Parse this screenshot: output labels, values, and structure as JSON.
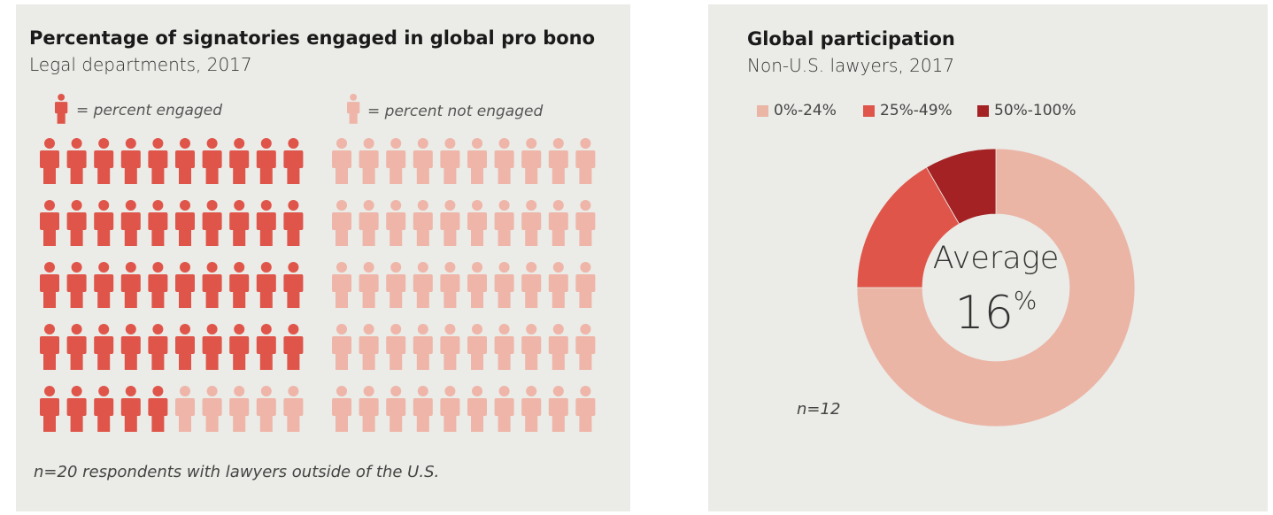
{
  "chart_data": [
    {
      "type": "pictogram",
      "title": "Percentage of signatories engaged in global pro bono",
      "subtitle": "Legal departments, 2017",
      "legend": [
        {
          "label": "= percent engaged",
          "color": "#df554a"
        },
        {
          "label": "= percent not engaged",
          "color": "#eeb5a8"
        }
      ],
      "total_icons": 100,
      "engaged": 45,
      "not_engaged": 55,
      "note": "n=20 respondents with lawyers outside of the U.S."
    },
    {
      "type": "pie",
      "style": "donut",
      "title": "Global participation",
      "subtitle": "Non-U.S. lawyers, 2017",
      "categories": [
        "0%-24%",
        "25%-49%",
        "50%-100%"
      ],
      "values": [
        9,
        2,
        1
      ],
      "colors": [
        "#ebb5a6",
        "#df554a",
        "#a42223"
      ],
      "legend_position": "top",
      "center_label": "Average",
      "center_value": "16",
      "center_unit": "%",
      "note": "n=12"
    }
  ]
}
